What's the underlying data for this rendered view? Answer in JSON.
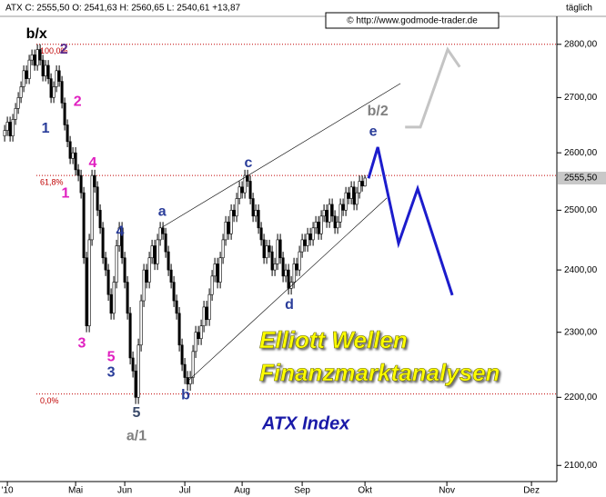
{
  "chart_data": {
    "type": "candlestick",
    "header": "ATX C: 2555,50 O: 2541,63 H: 2560,65 L: 2540,61 +13,87",
    "frequency": "täglich",
    "copyright": "© http://www.godmode-trader.de",
    "last_price": {
      "value": 2555.5,
      "label": "2555,50"
    },
    "log_scale": true,
    "xlim": [
      -1.7,
      202.3
    ],
    "ylim": [
      2077,
      2854
    ],
    "yticks": [
      {
        "value": 2100,
        "label": "2100,00"
      },
      {
        "value": 2200,
        "label": "2200,00"
      },
      {
        "value": 2300,
        "label": "2300,00"
      },
      {
        "value": 2400,
        "label": "2400,00"
      },
      {
        "value": 2500,
        "label": "2500,00"
      },
      {
        "value": 2600,
        "label": "2600,00"
      },
      {
        "value": 2700,
        "label": "2700,00"
      },
      {
        "value": 2800,
        "label": "2800,00"
      }
    ],
    "xticks": [
      {
        "value": 1,
        "label": "'10"
      },
      {
        "value": 26,
        "label": "Mai"
      },
      {
        "value": 44,
        "label": "Jun"
      },
      {
        "value": 66,
        "label": "Jul"
      },
      {
        "value": 87,
        "label": "Aug"
      },
      {
        "value": 109,
        "label": "Sep"
      },
      {
        "value": 132,
        "label": "Okt"
      },
      {
        "value": 162,
        "label": "Nov"
      },
      {
        "value": 193,
        "label": "Dez"
      }
    ],
    "open": [
      2630,
      2640,
      2655,
      2630,
      2660,
      2680,
      2700,
      2720,
      2750,
      2735,
      2770,
      2780,
      2760,
      2790,
      2770,
      2740,
      2760,
      2735,
      2700,
      2720,
      2750,
      2730,
      2690,
      2650,
      2620,
      2590,
      2600,
      2570,
      2560,
      2530,
      2420,
      2310,
      2450,
      2560,
      2540,
      2500,
      2470,
      2420,
      2400,
      2360,
      2330,
      2380,
      2440,
      2470,
      2420,
      2380,
      2330,
      2260,
      2240,
      2200,
      2280,
      2350,
      2400,
      2380,
      2420,
      2440,
      2410,
      2450,
      2470,
      2460,
      2430,
      2400,
      2380,
      2350,
      2330,
      2280,
      2250,
      2230,
      2220,
      2230,
      2270,
      2300,
      2290,
      2310,
      2340,
      2320,
      2360,
      2390,
      2410,
      2380,
      2420,
      2450,
      2480,
      2460,
      2500,
      2490,
      2520,
      2540,
      2530,
      2560,
      2550,
      2520,
      2490,
      2500,
      2470,
      2450,
      2420,
      2440,
      2430,
      2400,
      2410,
      2450,
      2420,
      2390,
      2400,
      2370,
      2380,
      2410,
      2400,
      2430,
      2450,
      2440,
      2460,
      2450,
      2470,
      2480,
      2460,
      2490,
      2500,
      2480,
      2510,
      2490,
      2470,
      2480,
      2510,
      2500,
      2530,
      2520,
      2540,
      2510,
      2530,
      2550,
      2541.63
    ],
    "high": [
      2650,
      2665,
      2665,
      2670,
      2690,
      2710,
      2730,
      2760,
      2760,
      2780,
      2790,
      2790,
      2800,
      2800,
      2780,
      2770,
      2770,
      2745,
      2730,
      2760,
      2760,
      2740,
      2700,
      2660,
      2630,
      2610,
      2610,
      2580,
      2570,
      2540,
      2430,
      2460,
      2570,
      2570,
      2550,
      2510,
      2480,
      2430,
      2410,
      2370,
      2390,
      2450,
      2480,
      2480,
      2430,
      2390,
      2340,
      2270,
      2250,
      2290,
      2360,
      2410,
      2410,
      2430,
      2450,
      2450,
      2460,
      2480,
      2480,
      2470,
      2440,
      2410,
      2390,
      2360,
      2340,
      2290,
      2260,
      2240,
      2240,
      2280,
      2310,
      2310,
      2320,
      2350,
      2350,
      2370,
      2400,
      2420,
      2420,
      2430,
      2460,
      2490,
      2490,
      2510,
      2510,
      2530,
      2550,
      2550,
      2570,
      2570,
      2560,
      2530,
      2510,
      2510,
      2480,
      2460,
      2450,
      2450,
      2440,
      2420,
      2460,
      2460,
      2430,
      2410,
      2410,
      2390,
      2420,
      2420,
      2440,
      2460,
      2460,
      2470,
      2470,
      2480,
      2490,
      2490,
      2500,
      2510,
      2510,
      2520,
      2520,
      2500,
      2490,
      2520,
      2520,
      2540,
      2540,
      2550,
      2550,
      2540,
      2560,
      2560,
      2560.65
    ],
    "low": [
      2620,
      2630,
      2620,
      2620,
      2650,
      2670,
      2690,
      2710,
      2725,
      2725,
      2760,
      2750,
      2750,
      2760,
      2730,
      2730,
      2725,
      2690,
      2690,
      2710,
      2720,
      2680,
      2640,
      2610,
      2580,
      2580,
      2560,
      2550,
      2520,
      2410,
      2300,
      2300,
      2440,
      2530,
      2490,
      2460,
      2410,
      2390,
      2350,
      2320,
      2320,
      2370,
      2430,
      2410,
      2370,
      2320,
      2250,
      2230,
      2190,
      2190,
      2270,
      2340,
      2370,
      2370,
      2410,
      2400,
      2400,
      2440,
      2450,
      2420,
      2390,
      2370,
      2340,
      2320,
      2270,
      2240,
      2220,
      2210,
      2210,
      2220,
      2260,
      2280,
      2280,
      2300,
      2310,
      2310,
      2350,
      2380,
      2370,
      2370,
      2410,
      2440,
      2450,
      2450,
      2480,
      2480,
      2510,
      2520,
      2520,
      2540,
      2510,
      2480,
      2480,
      2460,
      2440,
      2410,
      2410,
      2420,
      2390,
      2390,
      2400,
      2410,
      2380,
      2380,
      2360,
      2360,
      2370,
      2390,
      2390,
      2420,
      2430,
      2430,
      2440,
      2440,
      2460,
      2450,
      2450,
      2480,
      2470,
      2470,
      2480,
      2460,
      2460,
      2470,
      2490,
      2490,
      2510,
      2510,
      2500,
      2500,
      2520,
      2532,
      2540.61
    ],
    "close": [
      2640,
      2655,
      2630,
      2660,
      2680,
      2700,
      2720,
      2750,
      2735,
      2770,
      2780,
      2760,
      2790,
      2770,
      2740,
      2760,
      2735,
      2700,
      2720,
      2750,
      2730,
      2690,
      2650,
      2620,
      2590,
      2600,
      2570,
      2560,
      2530,
      2420,
      2310,
      2450,
      2560,
      2540,
      2500,
      2470,
      2420,
      2400,
      2360,
      2330,
      2380,
      2440,
      2470,
      2420,
      2380,
      2330,
      2260,
      2240,
      2200,
      2280,
      2350,
      2400,
      2380,
      2420,
      2440,
      2410,
      2450,
      2470,
      2460,
      2430,
      2400,
      2380,
      2350,
      2330,
      2280,
      2250,
      2230,
      2220,
      2230,
      2270,
      2300,
      2290,
      2310,
      2340,
      2320,
      2360,
      2390,
      2410,
      2380,
      2420,
      2450,
      2480,
      2460,
      2500,
      2490,
      2520,
      2540,
      2530,
      2560,
      2550,
      2520,
      2490,
      2500,
      2470,
      2450,
      2420,
      2440,
      2430,
      2400,
      2410,
      2450,
      2420,
      2390,
      2400,
      2370,
      2380,
      2410,
      2400,
      2430,
      2450,
      2440,
      2460,
      2450,
      2470,
      2480,
      2460,
      2490,
      2500,
      2480,
      2510,
      2490,
      2470,
      2480,
      2510,
      2500,
      2530,
      2520,
      2540,
      2510,
      2530,
      2550,
      2541.63,
      2555.5
    ],
    "levels": [
      {
        "label": "100,0%",
        "value": 2800
      },
      {
        "label": "61,8%",
        "value": 2560
      },
      {
        "label": "0,0%",
        "value": 2205
      }
    ],
    "lines": [
      {
        "color": "#000000",
        "x": [
          57.7,
          145
        ],
        "values": [
          2471,
          2726
        ]
      },
      {
        "color": "#000000",
        "x": [
          66.7,
          140
        ],
        "values": [
          2223,
          2521
        ]
      },
      {
        "color": "#1c1ccc",
        "x": [
          133.3,
          136.7,
          144.3,
          151.3,
          164
        ],
        "values": [
          2555,
          2610,
          2444,
          2537,
          2359
        ]
      },
      {
        "color": "#c4c4c4",
        "x": [
          146.7,
          152.3,
          162.3,
          166.7
        ],
        "values": [
          2646,
          2646,
          2790,
          2757
        ]
      }
    ],
    "annotations": [
      {
        "text": "b/x",
        "color": "#000000",
        "x": 11.7,
        "y": 2819
      },
      {
        "text": "2",
        "color": "#5a2a8a",
        "x": 21.7,
        "y": 2790
      },
      {
        "text": "1",
        "color": "#2a3d9a",
        "x": 15,
        "y": 2643
      },
      {
        "text": "2",
        "color": "#e020c0",
        "x": 26.7,
        "y": 2692
      },
      {
        "text": "4",
        "color": "#e020c0",
        "x": 32.3,
        "y": 2581
      },
      {
        "text": "1",
        "color": "#e020c0",
        "x": 22.3,
        "y": 2528
      },
      {
        "text": "3",
        "color": "#e020c0",
        "x": 28.3,
        "y": 2282
      },
      {
        "text": "5",
        "color": "#e020c0",
        "x": 39,
        "y": 2261
      },
      {
        "text": "3",
        "color": "#2a3d9a",
        "x": 39,
        "y": 2237
      },
      {
        "text": "4",
        "color": "#2a3d9a",
        "x": 42.3,
        "y": 2463
      },
      {
        "text": "5",
        "color": "#3a4a6a",
        "x": 48.3,
        "y": 2176
      },
      {
        "text": "a/1",
        "color": "#808080",
        "x": 48.3,
        "y": 2142
      },
      {
        "text": "a",
        "color": "#2a3d9a",
        "x": 57.7,
        "y": 2497
      },
      {
        "text": "b",
        "color": "#2a3d9a",
        "x": 66.3,
        "y": 2203
      },
      {
        "text": "c",
        "color": "#2a3d9a",
        "x": 89.3,
        "y": 2581
      },
      {
        "text": "d",
        "color": "#2a3d9a",
        "x": 104.3,
        "y": 2343
      },
      {
        "text": "e",
        "color": "#2a3d9a",
        "x": 135,
        "y": 2637
      },
      {
        "text": "b/2",
        "color": "#808080",
        "x": 136.7,
        "y": 2674
      }
    ],
    "overlay_text": [
      "Elliott Wellen",
      "Finanzmarktanalysen"
    ],
    "index_name": "ATX Index"
  }
}
